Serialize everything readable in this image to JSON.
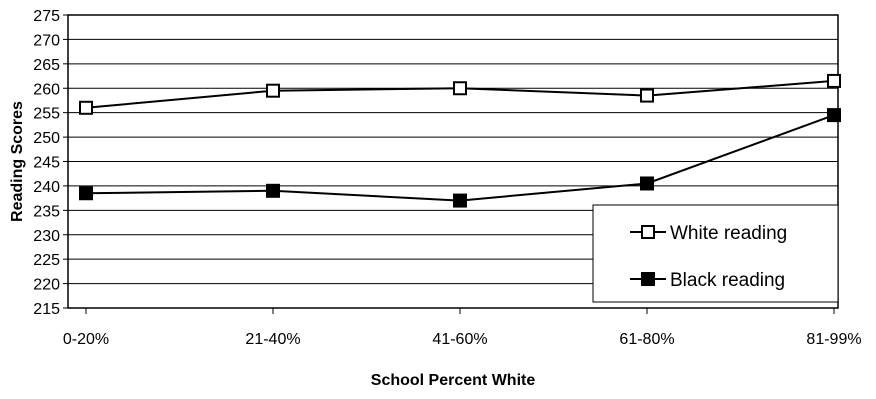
{
  "chart_data": {
    "type": "line",
    "title": "",
    "xlabel": "School Percent White",
    "ylabel": "Reading Scores",
    "categories": [
      "0-20%",
      "21-40%",
      "41-60%",
      "61-80%",
      "81-99%"
    ],
    "ylim": [
      215,
      275
    ],
    "yticks": [
      215,
      220,
      225,
      230,
      235,
      240,
      245,
      250,
      255,
      260,
      265,
      270,
      275
    ],
    "grid": true,
    "legend_position": "bottom-right",
    "series": [
      {
        "name": "White reading",
        "marker": "square-open",
        "color": "#000000",
        "values": [
          256,
          259.5,
          260,
          258.5,
          261.5
        ]
      },
      {
        "name": "Black reading",
        "marker": "square-filled",
        "color": "#000000",
        "values": [
          238.5,
          239,
          237,
          240.5,
          254.5
        ]
      }
    ]
  }
}
